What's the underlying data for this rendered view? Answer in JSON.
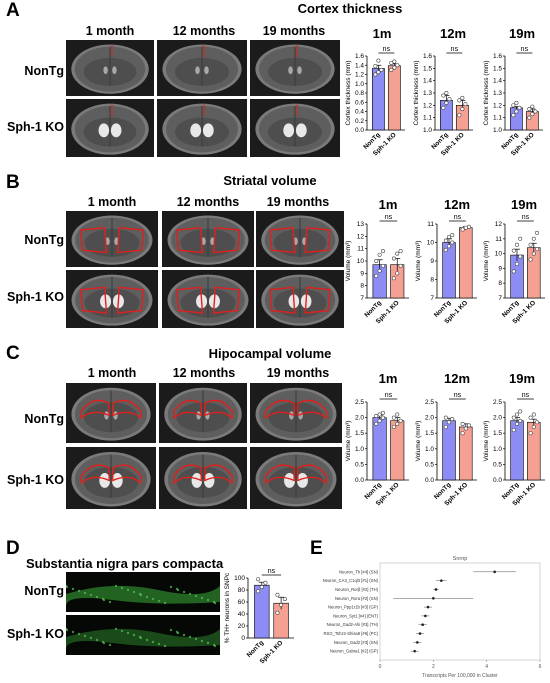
{
  "panel_letters": [
    "A",
    "B",
    "C",
    "D",
    "E"
  ],
  "panel_a": {
    "title": "Cortex thickness",
    "columns": [
      "1 month",
      "12 months",
      "19 months"
    ],
    "rows": [
      "NonTg",
      "Sph-1 KO"
    ],
    "graph_headers": [
      "1m",
      "12m",
      "19m"
    ]
  },
  "panel_b": {
    "title": "Striatal volume",
    "columns": [
      "1 month",
      "12 months",
      "19 months"
    ],
    "rows": [
      "NonTg",
      "Sph-1 KO"
    ],
    "graph_headers": [
      "1m",
      "12m",
      "19m"
    ]
  },
  "panel_c": {
    "title": "Hipocampal volume",
    "columns": [
      "1 month",
      "12 months",
      "19 months"
    ],
    "rows": [
      "NonTg",
      "Sph-1 KO"
    ],
    "graph_headers": [
      "1m",
      "12m",
      "19m"
    ]
  },
  "panel_d": {
    "title": "Substantia nigra pars compacta",
    "rows": [
      "NonTg",
      "Sph-1 KO"
    ]
  },
  "colors": {
    "nontg_bar": "#8c8cf4",
    "ko_bar": "#f4a092",
    "outline_red": "#e0201c",
    "fluor_green": "#2f8a2f"
  },
  "chart_data": [
    {
      "type": "bar",
      "panel": "A",
      "title": "1m",
      "ylabel": "Cortex thickness (mm)",
      "ylim": [
        0.0,
        1.6
      ],
      "yticks": [
        "0.0",
        "0.2",
        "0.4",
        "0.6",
        "0.8",
        "1.0",
        "1.2",
        "1.4",
        "1.6"
      ],
      "categories": [
        "NonTg",
        "Sph-1 KO"
      ],
      "values": [
        1.33,
        1.39
      ],
      "errors": [
        0.07,
        0.04
      ],
      "points": [
        [
          1.2,
          1.25,
          1.3,
          1.38,
          1.5
        ],
        [
          1.3,
          1.35,
          1.4,
          1.45,
          1.48
        ]
      ],
      "annotation": "ns"
    },
    {
      "type": "bar",
      "panel": "A",
      "title": "12m",
      "ylabel": "Cortex thickness (mm)",
      "ylim": [
        1.0,
        1.6
      ],
      "yticks": [
        "1.0",
        "1.1",
        "1.2",
        "1.3",
        "1.4",
        "1.5",
        "1.6"
      ],
      "categories": [
        "NonTg",
        "Sph-1 KO"
      ],
      "values": [
        1.24,
        1.2
      ],
      "errors": [
        0.04,
        0.04
      ],
      "points": [
        [
          1.18,
          1.22,
          1.25,
          1.28,
          1.3
        ],
        [
          1.12,
          1.17,
          1.21,
          1.24,
          1.26
        ]
      ],
      "annotation": "ns"
    },
    {
      "type": "bar",
      "panel": "A",
      "title": "19m",
      "ylabel": "Cortex thickness (mm)",
      "ylim": [
        1.0,
        1.6
      ],
      "yticks": [
        "1.0",
        "1.1",
        "1.2",
        "1.3",
        "1.4",
        "1.5",
        "1.6"
      ],
      "categories": [
        "NonTg",
        "Sph-1 KO"
      ],
      "values": [
        1.18,
        1.15
      ],
      "errors": [
        0.01,
        0.02
      ],
      "points": [
        [
          1.12,
          1.15,
          1.18,
          1.2,
          1.22
        ],
        [
          1.1,
          1.13,
          1.15,
          1.17,
          1.19
        ]
      ],
      "annotation": "ns"
    },
    {
      "type": "bar",
      "panel": "B",
      "title": "1m",
      "ylabel": "Volume (mm³)",
      "ylim": [
        7,
        13
      ],
      "yticks": [
        "7",
        "8",
        "9",
        "10",
        "11",
        "12",
        "13"
      ],
      "categories": [
        "NonTg",
        "Sph-1 KO"
      ],
      "values": [
        9.7,
        9.7
      ],
      "errors": [
        0.4,
        0.5
      ],
      "points": [
        [
          8.8,
          9.2,
          9.6,
          10.0,
          10.5,
          10.8
        ],
        [
          8.6,
          9.0,
          9.6,
          10.2,
          10.6,
          10.8
        ]
      ],
      "annotation": "ns"
    },
    {
      "type": "bar",
      "panel": "B",
      "title": "12m",
      "ylabel": "Volume (mm³)",
      "ylim": [
        7,
        11
      ],
      "yticks": [
        "7",
        "8",
        "9",
        "10",
        "11"
      ],
      "categories": [
        "NonTg",
        "Sph-1 KO"
      ],
      "values": [
        10.0,
        10.8
      ],
      "errors": [
        0.2,
        0.05
      ],
      "points": [
        [
          9.6,
          9.8,
          10.0,
          10.1,
          10.3,
          10.4
        ],
        [
          10.7,
          10.8,
          10.85
        ]
      ],
      "annotation": "ns"
    },
    {
      "type": "bar",
      "panel": "B",
      "title": "19m",
      "ylabel": "Volume (mm³)",
      "ylim": [
        7,
        12
      ],
      "yticks": [
        "7",
        "8",
        "9",
        "10",
        "11",
        "12"
      ],
      "categories": [
        "NonTg",
        "Sph-1 KO"
      ],
      "values": [
        9.9,
        10.4
      ],
      "errors": [
        0.4,
        0.3
      ],
      "points": [
        [
          8.8,
          9.3,
          9.8,
          10.2,
          10.6,
          11.0
        ],
        [
          9.6,
          10.0,
          10.3,
          10.6,
          11.0,
          11.4
        ]
      ],
      "annotation": "ns"
    },
    {
      "type": "bar",
      "panel": "C",
      "title": "1m",
      "ylabel": "Volume (mm³)",
      "ylim": [
        0.0,
        2.5
      ],
      "yticks": [
        "0.0",
        "0.5",
        "1.0",
        "1.5",
        "2.0",
        "2.5"
      ],
      "categories": [
        "NonTg",
        "Sph-1 KO"
      ],
      "values": [
        2.0,
        1.9
      ],
      "errors": [
        0.08,
        0.1
      ],
      "points": [
        [
          1.8,
          1.9,
          2.0,
          2.05,
          2.1,
          2.15
        ],
        [
          1.7,
          1.8,
          1.9,
          2.0,
          2.1
        ]
      ],
      "annotation": "ns"
    },
    {
      "type": "bar",
      "panel": "C",
      "title": "12m",
      "ylabel": "Volume (mm³)",
      "ylim": [
        0.0,
        2.5
      ],
      "yticks": [
        "0.0",
        "0.5",
        "1.0",
        "1.5",
        "2.0",
        "2.5"
      ],
      "categories": [
        "NonTg",
        "Sph-1 KO"
      ],
      "values": [
        1.9,
        1.7
      ],
      "errors": [
        0.08,
        0.1
      ],
      "points": [
        [
          1.7,
          1.85,
          1.95,
          2.0
        ],
        [
          1.5,
          1.65,
          1.75,
          1.8
        ]
      ],
      "annotation": "ns"
    },
    {
      "type": "bar",
      "panel": "C",
      "title": "19m",
      "ylabel": "Volume (mm³)",
      "ylim": [
        0.0,
        2.5
      ],
      "yticks": [
        "0.0",
        "0.5",
        "1.0",
        "1.5",
        "2.0",
        "2.5"
      ],
      "categories": [
        "NonTg",
        "Sph-1 KO"
      ],
      "values": [
        1.9,
        1.85
      ],
      "errors": [
        0.1,
        0.1
      ],
      "points": [
        [
          1.6,
          1.8,
          1.9,
          2.0,
          2.1,
          2.2
        ],
        [
          1.5,
          1.7,
          1.85,
          2.0,
          2.1
        ]
      ],
      "annotation": "ns"
    },
    {
      "type": "bar",
      "panel": "D",
      "title": "",
      "ylabel": "% TH+ neurons in SNPc",
      "ylim": [
        0,
        100
      ],
      "yticks": [
        "0",
        "20",
        "40",
        "60",
        "80",
        "100"
      ],
      "categories": [
        "NonTg",
        "Sph-1 KO"
      ],
      "values": [
        88,
        58
      ],
      "errors": [
        5,
        10
      ],
      "points": [
        [
          78,
          85,
          92,
          98
        ],
        [
          42,
          55,
          65,
          72
        ]
      ],
      "annotation": "ns"
    },
    {
      "type": "scatter",
      "panel": "E",
      "title": "Snrnp",
      "xlabel": "Transcripts Per 100,000 in Cluster",
      "xlim": [
        0,
        6
      ],
      "xticks": [
        "0",
        "2",
        "4",
        "6"
      ],
      "categories": [
        "Neuron_Th [#4] (SN)",
        "Neuron_CA3_C1ql3 [#1] (SN)",
        "Neuron_Rorβ [#2] (TH)",
        "Neuron_Rora [#2] (SN)",
        "Neuron_Ppp1r1b [#3] (GP)",
        "Neuron_Syt1 [#4] (ENT)",
        "Neuron_Gad2-Ahi [#3] (TH)",
        "RSG_Tshz2-Shisa8 [#6] (PC)",
        "Neuron_Gad2 [#3] (SN)",
        "Neuron_Gabra1 [#2] (GP)"
      ],
      "values": [
        4.3,
        2.3,
        2.1,
        2.0,
        1.8,
        1.7,
        1.6,
        1.5,
        1.4,
        1.3
      ],
      "errors": [
        0.8,
        0.2,
        0.1,
        1.5,
        0.15,
        0.15,
        0.15,
        0.15,
        0.15,
        0.15
      ]
    }
  ]
}
